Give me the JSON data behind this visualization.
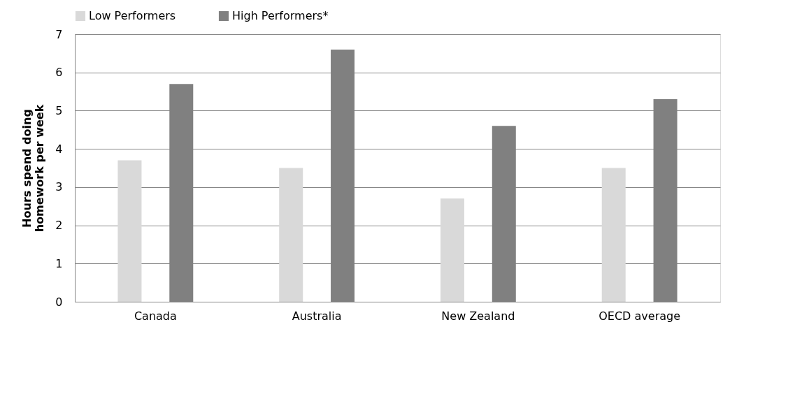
{
  "chart_data": {
    "type": "bar",
    "ylabel": "Hours spend doing\nhomework per week",
    "categories": [
      "Canada",
      "Australia",
      "New Zealand",
      "OECD average"
    ],
    "series": [
      {
        "name": "Low Performers",
        "color": "#d9d9d9",
        "values": [
          3.7,
          3.5,
          2.7,
          3.5
        ]
      },
      {
        "name": "High Performers*",
        "color": "#808080",
        "values": [
          5.7,
          6.6,
          4.6,
          5.3
        ]
      }
    ],
    "ylim": [
      0,
      7
    ],
    "yticks": [
      0,
      1,
      2,
      3,
      4,
      5,
      6,
      7
    ],
    "grid": "y",
    "legend": "top"
  }
}
